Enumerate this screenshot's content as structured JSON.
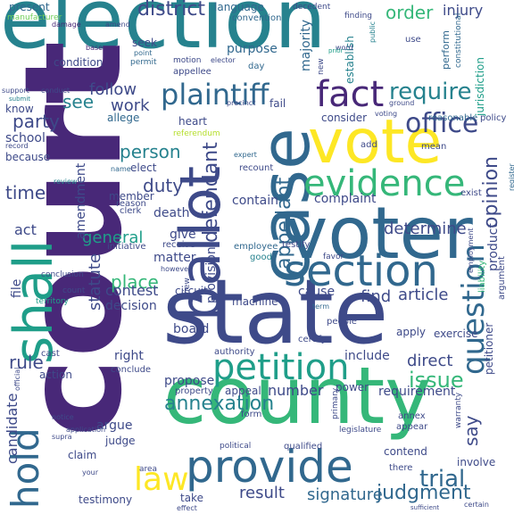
{
  "palette": {
    "dark_purple": "#440154",
    "purple": "#482878",
    "indigo": "#3e4a89",
    "blue": "#31688e",
    "teal_blue": "#26828e",
    "teal": "#1f9e89",
    "green": "#35b779",
    "light_green": "#6ece58",
    "lime": "#b5de2b",
    "yellow": "#fde725"
  },
  "words": [
    {
      "text": "election",
      "color": "#26828e"
    },
    {
      "text": "court",
      "color": "#482878"
    },
    {
      "text": "state",
      "color": "#3e4a89"
    },
    {
      "text": "vote",
      "color": "#fde725"
    },
    {
      "text": "voter",
      "color": "#31688e"
    },
    {
      "text": "county",
      "color": "#35b779"
    },
    {
      "text": "case",
      "color": "#31688e"
    },
    {
      "text": "ballot",
      "color": "#3e4a89"
    },
    {
      "text": "shall",
      "color": "#1f9e89"
    },
    {
      "text": "provide",
      "color": "#31688e"
    },
    {
      "text": "section",
      "color": "#31688e"
    },
    {
      "text": "evidence",
      "color": "#35b779"
    },
    {
      "text": "fact",
      "color": "#482878"
    },
    {
      "text": "petition",
      "color": "#1f9e89"
    },
    {
      "text": "hold",
      "color": "#31688e"
    },
    {
      "text": "question",
      "color": "#31688e"
    },
    {
      "text": "law",
      "color": "#fde725"
    },
    {
      "text": "plaintiff",
      "color": "#31688e"
    },
    {
      "text": "district",
      "color": "#3e4a89"
    },
    {
      "text": "require",
      "color": "#26828e"
    },
    {
      "text": "office",
      "color": "#3e4a89"
    },
    {
      "text": "appellant",
      "color": "#31688e"
    },
    {
      "text": "defendant",
      "color": "#3e4a89"
    },
    {
      "text": "opinion",
      "color": "#3e4a89"
    },
    {
      "text": "trial",
      "color": "#31688e"
    },
    {
      "text": "judgment",
      "color": "#31688e"
    },
    {
      "text": "issue",
      "color": "#35b779"
    },
    {
      "text": "annexation",
      "color": "#26828e"
    },
    {
      "text": "result",
      "color": "#3e4a89"
    },
    {
      "text": "signature",
      "color": "#31688e"
    },
    {
      "text": "candidate",
      "color": "#3e4a89"
    },
    {
      "text": "follow",
      "color": "#3e4a89"
    },
    {
      "text": "party",
      "color": "#3e4a89"
    },
    {
      "text": "person",
      "color": "#26828e"
    },
    {
      "text": "duty",
      "color": "#3e4a89"
    },
    {
      "text": "statute",
      "color": "#3e4a89"
    },
    {
      "text": "place",
      "color": "#35b779"
    },
    {
      "text": "general",
      "color": "#1f9e89"
    },
    {
      "text": "determine",
      "color": "#3e4a89"
    },
    {
      "text": "article",
      "color": "#3e4a89"
    },
    {
      "text": "find",
      "color": "#3e4a89"
    },
    {
      "text": "number",
      "color": "#3e4a89"
    },
    {
      "text": "order",
      "color": "#35b779"
    },
    {
      "text": "injury",
      "color": "#3e4a89"
    },
    {
      "text": "present",
      "color": "#31688e"
    },
    {
      "text": "language",
      "color": "#31688e"
    },
    {
      "text": "convention",
      "color": "#31688e"
    },
    {
      "text": "manufacturer",
      "color": "#6ece58"
    },
    {
      "text": "damage",
      "color": "#482878"
    },
    {
      "text": "amend",
      "color": "#3e4a89"
    },
    {
      "text": "seek",
      "color": "#3e4a89"
    },
    {
      "text": "point",
      "color": "#31688e"
    },
    {
      "text": "permit",
      "color": "#31688e"
    },
    {
      "text": "base",
      "color": "#482878"
    },
    {
      "text": "condition",
      "color": "#3e4a89"
    },
    {
      "text": "motion",
      "color": "#3e4a89"
    },
    {
      "text": "appellee",
      "color": "#3e4a89"
    },
    {
      "text": "elector",
      "color": "#3e4a89"
    },
    {
      "text": "purpose",
      "color": "#31688e"
    },
    {
      "text": "day",
      "color": "#31688e"
    },
    {
      "text": "majority",
      "color": "#31688e"
    },
    {
      "text": "new",
      "color": "#3e4a89"
    },
    {
      "text": "establish",
      "color": "#26828e"
    },
    {
      "text": "decedent",
      "color": "#3e4a89"
    },
    {
      "text": "finding",
      "color": "#3e4a89"
    },
    {
      "text": "word",
      "color": "#3e4a89"
    },
    {
      "text": "public",
      "color": "#26828e"
    },
    {
      "text": "use",
      "color": "#3e4a89"
    },
    {
      "text": "prior",
      "color": "#1f9e89"
    },
    {
      "text": "perform",
      "color": "#31688e"
    },
    {
      "text": "jurisdiction",
      "color": "#1f9e89"
    },
    {
      "text": "constitutional",
      "color": "#31688e"
    },
    {
      "text": "support",
      "color": "#3e4a89"
    },
    {
      "text": "conduct",
      "color": "#3e4a89"
    },
    {
      "text": "submit",
      "color": "#26828e"
    },
    {
      "text": "know",
      "color": "#3e4a89"
    },
    {
      "text": "see",
      "color": "#26828e"
    },
    {
      "text": "work",
      "color": "#3e4a89"
    },
    {
      "text": "allege",
      "color": "#31688e"
    },
    {
      "text": "heart",
      "color": "#3e4a89"
    },
    {
      "text": "referendum",
      "color": "#b5de2b"
    },
    {
      "text": "precinct",
      "color": "#3e4a89"
    },
    {
      "text": "fail",
      "color": "#3e4a89"
    },
    {
      "text": "consider",
      "color": "#3e4a89"
    },
    {
      "text": "voting",
      "color": "#3e4a89"
    },
    {
      "text": "ground",
      "color": "#3e4a89"
    },
    {
      "text": "reasonable",
      "color": "#31688e"
    },
    {
      "text": "policy",
      "color": "#3e4a89"
    },
    {
      "text": "school",
      "color": "#3e4a89"
    },
    {
      "text": "because",
      "color": "#3e4a89"
    },
    {
      "text": "record",
      "color": "#3e4a89"
    },
    {
      "text": "time",
      "color": "#3e4a89"
    },
    {
      "text": "review",
      "color": "#26828e"
    },
    {
      "text": "name",
      "color": "#31688e"
    },
    {
      "text": "elect",
      "color": "#3e4a89"
    },
    {
      "text": "expert",
      "color": "#31688e"
    },
    {
      "text": "recount",
      "color": "#3e4a89"
    },
    {
      "text": "add",
      "color": "#3e4a89"
    },
    {
      "text": "mean",
      "color": "#3e4a89"
    },
    {
      "text": "exist",
      "color": "#3e4a89"
    },
    {
      "text": "register",
      "color": "#31688e"
    },
    {
      "text": "member",
      "color": "#3e4a89"
    },
    {
      "text": "reason",
      "color": "#3e4a89"
    },
    {
      "text": "clerk",
      "color": "#3e4a89"
    },
    {
      "text": "amendment",
      "color": "#3e4a89"
    },
    {
      "text": "death",
      "color": "#3e4a89"
    },
    {
      "text": "contain",
      "color": "#3e4a89"
    },
    {
      "text": "complaint",
      "color": "#3e4a89"
    },
    {
      "text": "act",
      "color": "#3e4a89"
    },
    {
      "text": "give",
      "color": "#3e4a89"
    },
    {
      "text": "initiative",
      "color": "#3e4a89"
    },
    {
      "text": "receive",
      "color": "#3e4a89"
    },
    {
      "text": "matter",
      "color": "#3e4a89"
    },
    {
      "text": "provision",
      "color": "#3e4a89"
    },
    {
      "text": "employee",
      "color": "#31688e"
    },
    {
      "text": "good",
      "color": "#26828e"
    },
    {
      "text": "testify",
      "color": "#3e4a89"
    },
    {
      "text": "favor",
      "color": "#3e4a89"
    },
    {
      "text": "product",
      "color": "#3e4a89"
    },
    {
      "text": "argument",
      "color": "#3e4a89"
    },
    {
      "text": "liability",
      "color": "#35b779"
    },
    {
      "text": "employment",
      "color": "#3e4a89"
    },
    {
      "text": "file",
      "color": "#3e4a89"
    },
    {
      "text": "conclusion",
      "color": "#3e4a89"
    },
    {
      "text": "count",
      "color": "#3e4a89"
    },
    {
      "text": "territory",
      "color": "#1f9e89"
    },
    {
      "text": "contest",
      "color": "#3e4a89"
    },
    {
      "text": "decision",
      "color": "#3e4a89"
    },
    {
      "text": "circuit",
      "color": "#3e4a89"
    },
    {
      "text": "board",
      "color": "#3e4a89"
    },
    {
      "text": "machine",
      "color": "#3e4a89"
    },
    {
      "text": "cause",
      "color": "#3e4a89"
    },
    {
      "text": "term",
      "color": "#31688e"
    },
    {
      "text": "people",
      "color": "#3e4a89"
    },
    {
      "text": "certify",
      "color": "#3e4a89"
    },
    {
      "text": "apply",
      "color": "#3e4a89"
    },
    {
      "text": "exercise",
      "color": "#3e4a89"
    },
    {
      "text": "petitioner",
      "color": "#3e4a89"
    },
    {
      "text": "rule",
      "color": "#3e4a89"
    },
    {
      "text": "cast",
      "color": "#3e4a89"
    },
    {
      "text": "right",
      "color": "#3e4a89"
    },
    {
      "text": "conclude",
      "color": "#3e4a89"
    },
    {
      "text": "authority",
      "color": "#3e4a89"
    },
    {
      "text": "include",
      "color": "#3e4a89"
    },
    {
      "text": "direct",
      "color": "#3e4a89"
    },
    {
      "text": "action",
      "color": "#3e4a89"
    },
    {
      "text": "propose",
      "color": "#3e4a89"
    },
    {
      "text": "property",
      "color": "#3e4a89"
    },
    {
      "text": "appeal",
      "color": "#3e4a89"
    },
    {
      "text": "power",
      "color": "#3e4a89"
    },
    {
      "text": "requirement",
      "color": "#3e4a89"
    },
    {
      "text": "notice",
      "color": "#3e4a89"
    },
    {
      "text": "argue",
      "color": "#3e4a89"
    },
    {
      "text": "application",
      "color": "#3e4a89"
    },
    {
      "text": "judge",
      "color": "#3e4a89"
    },
    {
      "text": "form",
      "color": "#3e4a89"
    },
    {
      "text": "claim",
      "color": "#3e4a89"
    },
    {
      "text": "primary",
      "color": "#3e4a89"
    },
    {
      "text": "annex",
      "color": "#3e4a89"
    },
    {
      "text": "appear",
      "color": "#3e4a89"
    },
    {
      "text": "warranty",
      "color": "#3e4a89"
    },
    {
      "text": "supra",
      "color": "#3e4a89"
    },
    {
      "text": "political",
      "color": "#3e4a89"
    },
    {
      "text": "qualified",
      "color": "#3e4a89"
    },
    {
      "text": "legislature",
      "color": "#3e4a89"
    },
    {
      "text": "contend",
      "color": "#3e4a89"
    },
    {
      "text": "involve",
      "color": "#3e4a89"
    },
    {
      "text": "testimony",
      "color": "#3e4a89"
    },
    {
      "text": "take",
      "color": "#3e4a89"
    },
    {
      "text": "effect",
      "color": "#3e4a89"
    },
    {
      "text": "certain",
      "color": "#3e4a89"
    },
    {
      "text": "sufficient",
      "color": "#3e4a89"
    },
    {
      "text": "there",
      "color": "#3e4a89"
    },
    {
      "text": "your",
      "color": "#3e4a89"
    },
    {
      "text": "area",
      "color": "#3e4a89"
    },
    {
      "text": "official",
      "color": "#3e4a89"
    },
    {
      "text": "however",
      "color": "#3e4a89"
    },
    {
      "text": "view",
      "color": "#3e4a89"
    },
    {
      "text": "say",
      "color": "#3e4a89"
    }
  ]
}
